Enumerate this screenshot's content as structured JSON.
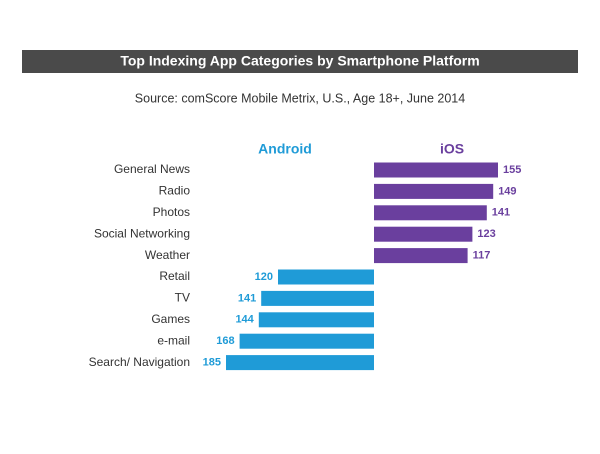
{
  "chart_data": {
    "type": "diverging-bar",
    "title": "Top Indexing App Categories by Smartphone Platform",
    "subtitle": "Source: comScore Mobile Metrix, U.S., Age 18+, June 2014",
    "categories": [
      "General News",
      "Radio",
      "Photos",
      "Social Networking",
      "Weather",
      "Retail",
      "TV",
      "Games",
      "e-mail",
      "Search/ Navigation"
    ],
    "series": [
      {
        "name": "Android",
        "color": "#1f9bd7",
        "values": [
          null,
          null,
          null,
          null,
          null,
          120,
          141,
          144,
          168,
          185
        ]
      },
      {
        "name": "iOS",
        "color": "#6a3f9e",
        "values": [
          155,
          149,
          141,
          123,
          117,
          null,
          null,
          null,
          null,
          null
        ]
      }
    ]
  }
}
